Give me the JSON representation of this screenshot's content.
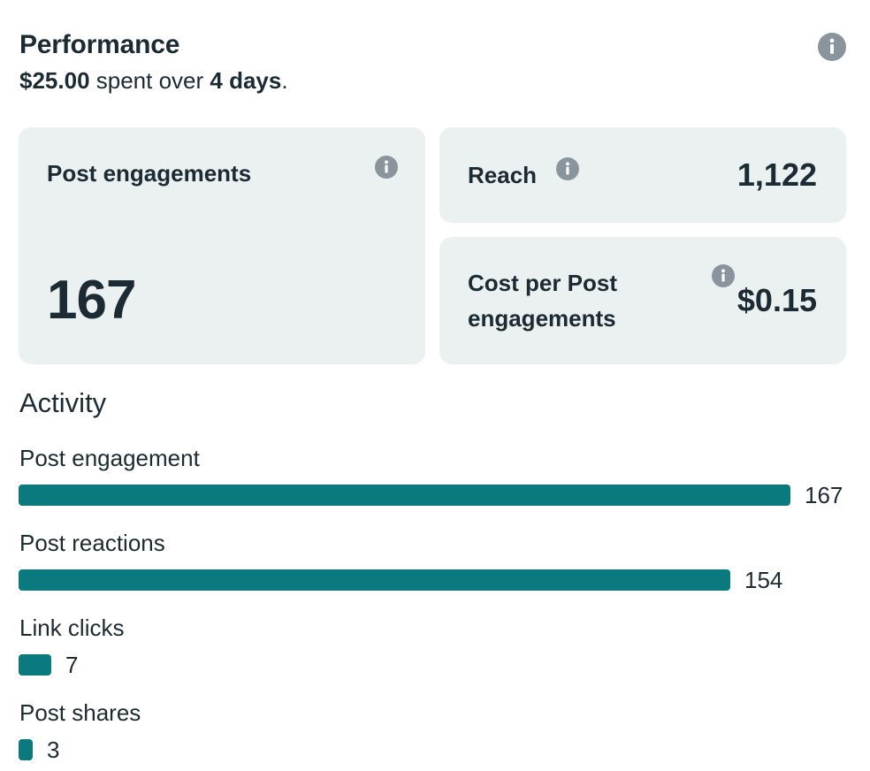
{
  "header": {
    "title": "Performance",
    "spend_amount": "$25.00",
    "spend_middle": " spent over ",
    "spend_duration": "4 days",
    "spend_end": ".",
    "info_icon": "info-icon"
  },
  "cards": {
    "post_engagements": {
      "label": "Post engagements",
      "value": "167"
    },
    "reach": {
      "label": "Reach",
      "value": "1,122"
    },
    "cost_per": {
      "label": "Cost per Post engagements",
      "value": "$0.15"
    }
  },
  "activity": {
    "title": "Activity",
    "max": 167,
    "bar_color": "#0a7a7f",
    "items": [
      {
        "label": "Post engagement",
        "value": 167
      },
      {
        "label": "Post reactions",
        "value": 154
      },
      {
        "label": "Link clicks",
        "value": 7
      },
      {
        "label": "Post shares",
        "value": 3
      }
    ]
  }
}
